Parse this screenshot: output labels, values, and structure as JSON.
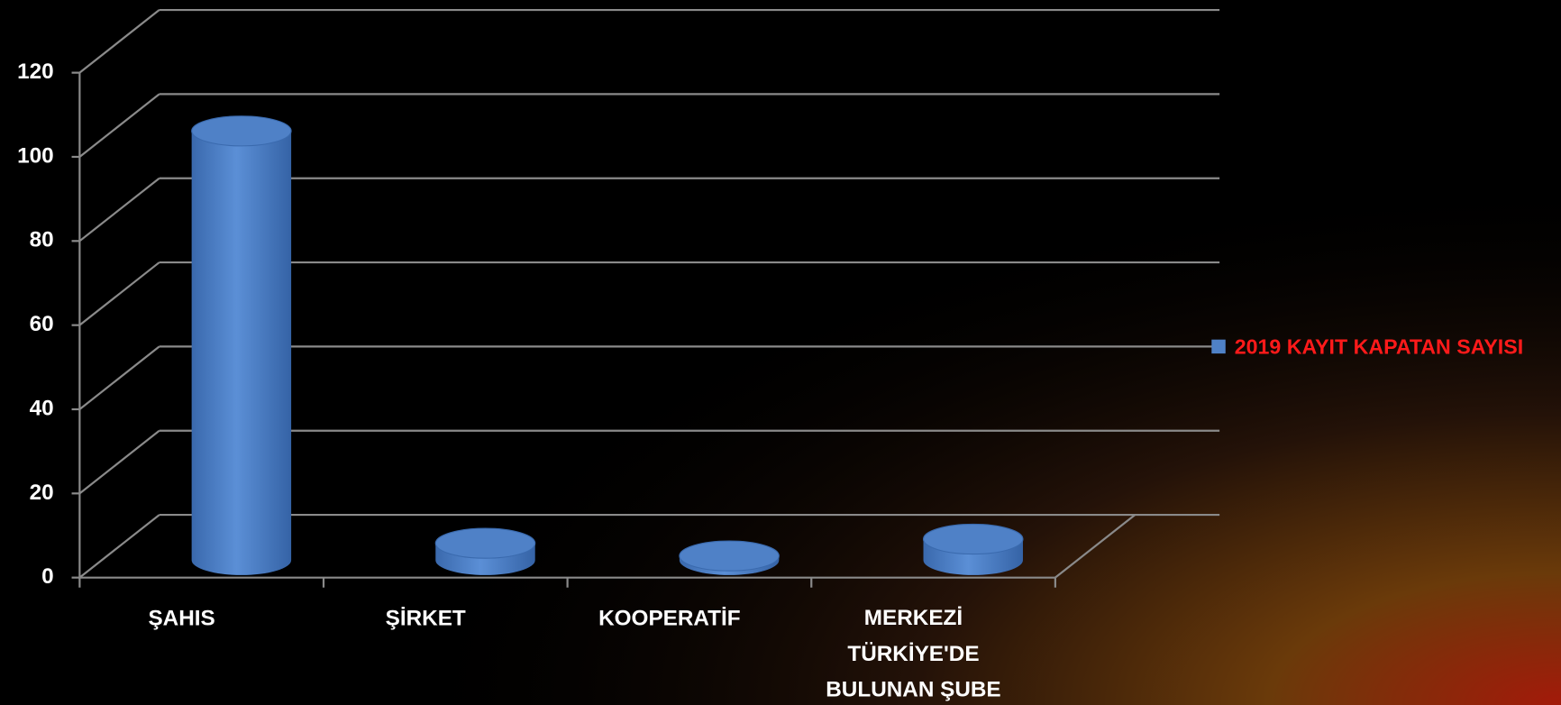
{
  "chart_data": {
    "type": "bar3d-cylinder",
    "categories": [
      "ŞAHIS",
      "ŞİRKET",
      "KOOPERATİF",
      "MERKEZİ TÜRKİYE'DE BULUNAN ŞUBE"
    ],
    "series": [
      {
        "name": "2019 KAYIT KAPATAN SAYISI",
        "color": "#4f81c7",
        "values": [
          102,
          4,
          1,
          5
        ]
      }
    ],
    "ylim": [
      0,
      120
    ],
    "yticks": [
      0,
      20,
      40,
      60,
      80,
      100,
      120
    ],
    "grid": true,
    "legend": "right"
  }
}
